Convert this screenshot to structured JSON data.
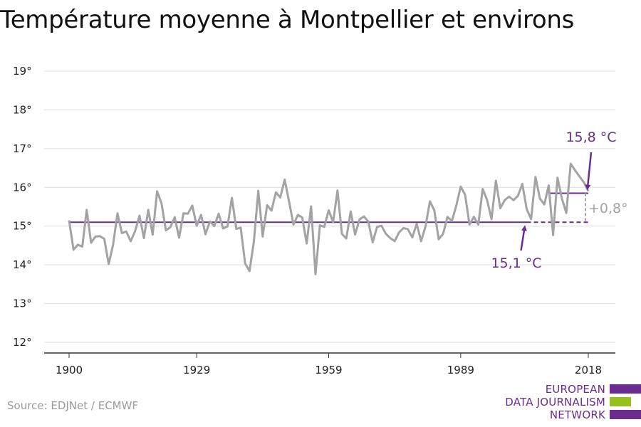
{
  "title": "Température moyenne à Montpellier et environs",
  "source": "Source: EDJNet / ECMWF",
  "logo": {
    "lines": [
      "EUROPEAN",
      "DATA JOURNALISM",
      "NETWORK"
    ],
    "bar_colors": [
      "#6a2c91",
      "#95c11f",
      "#6a2c91"
    ]
  },
  "colors": {
    "series": "#a3a3a3",
    "accent": "#6a2c91",
    "grid": "#dddddd",
    "axis": "#333333",
    "diff": "#a3a3a3"
  },
  "chart_data": {
    "type": "line",
    "title": "Température moyenne à Montpellier et environs",
    "xlabel": "",
    "ylabel": "",
    "xlim": [
      1900,
      2018
    ],
    "ylim": [
      12,
      19
    ],
    "grid": true,
    "x_ticks": [
      1900,
      1929,
      1959,
      1989,
      2018
    ],
    "x_tick_labels": [
      "1900",
      "1929",
      "1959",
      "1989",
      "2018"
    ],
    "y_ticks": [
      12,
      13,
      14,
      15,
      16,
      17,
      18,
      19
    ],
    "y_tick_labels": [
      "12°",
      "13°",
      "14°",
      "15°",
      "16°",
      "17°",
      "18°",
      "19°"
    ],
    "series": [
      {
        "x_start": 1900,
        "x_end": 2018,
        "values": [
          15.15,
          14.39,
          14.52,
          14.47,
          15.42,
          14.57,
          14.73,
          14.74,
          14.67,
          14.02,
          14.52,
          15.33,
          14.82,
          14.86,
          14.61,
          14.87,
          15.27,
          14.69,
          15.42,
          14.78,
          15.9,
          15.59,
          14.89,
          14.97,
          15.23,
          14.7,
          15.33,
          15.32,
          15.53,
          15.01,
          15.29,
          14.79,
          15.12,
          15.0,
          15.32,
          14.94,
          14.99,
          15.73,
          14.93,
          14.96,
          14.04,
          13.84,
          14.6,
          15.91,
          14.73,
          15.54,
          15.4,
          15.87,
          15.74,
          16.2,
          15.63,
          15.04,
          15.29,
          15.22,
          14.55,
          15.51,
          13.76,
          15.02,
          14.98,
          15.41,
          15.1,
          15.92,
          14.8,
          14.68,
          15.38,
          14.78,
          15.17,
          15.25,
          15.12,
          14.58,
          14.98,
          15.01,
          14.8,
          14.69,
          14.61,
          14.84,
          14.95,
          14.92,
          14.71,
          15.06,
          14.61,
          14.99,
          15.64,
          15.41,
          14.66,
          14.8,
          15.24,
          15.13,
          15.53,
          16.02,
          15.81,
          15.04,
          15.24,
          15.04,
          15.96,
          15.67,
          15.18,
          16.17,
          15.46,
          15.67,
          15.76,
          15.67,
          15.78,
          16.09,
          15.44,
          15.18,
          16.27,
          15.71,
          15.56,
          16.05,
          14.77,
          16.25,
          15.71,
          15.34,
          16.61,
          16.44,
          16.28,
          16.13,
          15.9
        ]
      }
    ],
    "reference_lines": [
      {
        "name": "avg_past",
        "x_start": 1900,
        "x_end": 2004,
        "value": 15.1,
        "label": "15,1 °C"
      },
      {
        "name": "avg_past_extended",
        "x_start": 2004,
        "x_end": 2018,
        "value": 15.1,
        "dashed": true
      },
      {
        "name": "avg_recent",
        "x_start": 2009,
        "x_end": 2018,
        "value": 15.85,
        "label": "15,8 °C"
      }
    ],
    "annotations": [
      {
        "text": "15,8 °C",
        "target_x": 2018,
        "target_y": 15.85
      },
      {
        "text": "15,1 °C",
        "target_x": 2004,
        "target_y": 15.1
      },
      {
        "text": "+0,8°",
        "x": 2018,
        "y": 15.47
      }
    ]
  }
}
